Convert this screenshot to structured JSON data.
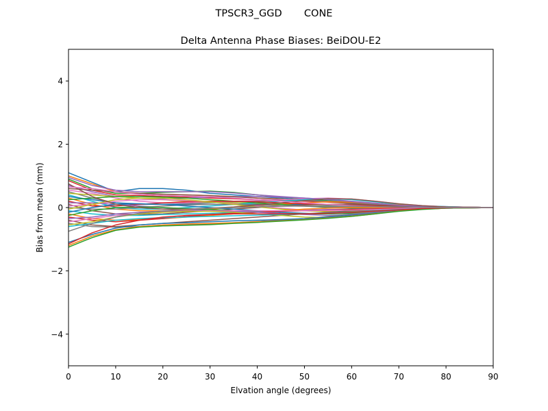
{
  "chart_data": {
    "type": "line",
    "suptitle": "TPSCR3_GGD       CONE",
    "title": "Delta Antenna Phase Biases: BeiDOU-E2",
    "xlabel": "Elvation angle (degrees)",
    "ylabel": "Bias from mean (mm)",
    "xlim": [
      0,
      90
    ],
    "ylim": [
      -5,
      5
    ],
    "xticks": [
      0,
      10,
      20,
      30,
      40,
      50,
      60,
      70,
      80,
      90
    ],
    "yticks": [
      -4,
      -2,
      0,
      2,
      4
    ],
    "grid": false,
    "legend": "none",
    "x": [
      0,
      5,
      10,
      15,
      20,
      25,
      30,
      35,
      40,
      45,
      50,
      55,
      60,
      65,
      70,
      75,
      80,
      85,
      90
    ],
    "series": [
      {
        "values": [
          1.1,
          0.8,
          0.5,
          0.6,
          0.6,
          0.55,
          0.45,
          0.4,
          0.35,
          0.3,
          0.25,
          0.2,
          0.15,
          0.1,
          0.05,
          0.03,
          0.02,
          0.01,
          0.0
        ]
      },
      {
        "values": [
          1.0,
          0.75,
          0.5,
          0.45,
          0.42,
          0.4,
          0.38,
          0.35,
          0.3,
          0.27,
          0.22,
          0.18,
          0.14,
          0.1,
          0.06,
          0.03,
          0.02,
          0.01,
          0.0
        ]
      },
      {
        "values": [
          0.9,
          0.6,
          0.45,
          0.45,
          0.48,
          0.5,
          0.52,
          0.48,
          0.4,
          0.33,
          0.28,
          0.22,
          0.17,
          0.12,
          0.07,
          0.04,
          0.02,
          0.01,
          0.0
        ]
      },
      {
        "values": [
          0.85,
          0.55,
          0.4,
          0.38,
          0.35,
          0.33,
          0.3,
          0.28,
          0.25,
          0.22,
          0.2,
          0.17,
          0.13,
          0.09,
          0.05,
          0.03,
          0.02,
          0.01,
          0.0
        ]
      },
      {
        "values": [
          0.7,
          0.5,
          0.35,
          0.3,
          0.28,
          0.3,
          0.33,
          0.35,
          0.35,
          0.33,
          0.3,
          0.26,
          0.2,
          0.14,
          0.08,
          0.05,
          0.03,
          0.01,
          0.0
        ]
      },
      {
        "values": [
          0.6,
          0.55,
          0.5,
          0.45,
          0.42,
          0.4,
          0.38,
          0.34,
          0.3,
          0.26,
          0.22,
          0.18,
          0.13,
          0.09,
          0.05,
          0.03,
          0.02,
          0.01,
          0.0
        ]
      },
      {
        "values": [
          0.55,
          0.45,
          0.3,
          0.2,
          0.15,
          0.15,
          0.18,
          0.2,
          0.22,
          0.25,
          0.28,
          0.3,
          0.27,
          0.2,
          0.12,
          0.06,
          0.03,
          0.01,
          0.0
        ]
      },
      {
        "values": [
          0.5,
          0.3,
          0.15,
          0.1,
          0.1,
          0.12,
          0.15,
          0.18,
          0.2,
          0.22,
          0.22,
          0.2,
          0.16,
          0.11,
          0.06,
          0.03,
          0.02,
          0.01,
          0.0
        ]
      },
      {
        "values": [
          0.45,
          0.4,
          0.35,
          0.3,
          0.25,
          0.2,
          0.17,
          0.15,
          0.13,
          0.12,
          0.1,
          0.08,
          0.07,
          0.05,
          0.03,
          0.02,
          0.01,
          0.0,
          0.0
        ]
      },
      {
        "values": [
          0.4,
          0.2,
          0.0,
          -0.05,
          -0.05,
          0.0,
          0.05,
          0.1,
          0.15,
          0.2,
          0.25,
          0.28,
          0.25,
          0.18,
          0.1,
          0.05,
          0.03,
          0.01,
          0.0
        ]
      },
      {
        "values": [
          0.35,
          0.25,
          0.15,
          0.12,
          0.1,
          0.1,
          0.1,
          0.1,
          0.1,
          0.1,
          0.1,
          0.09,
          0.08,
          0.06,
          0.04,
          0.02,
          0.01,
          0.0,
          0.0
        ]
      },
      {
        "values": [
          0.3,
          0.1,
          -0.05,
          -0.1,
          -0.1,
          -0.08,
          -0.05,
          0.0,
          0.05,
          0.1,
          0.15,
          0.18,
          0.17,
          0.13,
          0.08,
          0.04,
          0.02,
          0.01,
          0.0
        ]
      },
      {
        "values": [
          0.25,
          0.3,
          0.35,
          0.35,
          0.33,
          0.3,
          0.25,
          0.2,
          0.15,
          0.1,
          0.05,
          0.0,
          -0.02,
          -0.02,
          -0.01,
          0.0,
          0.0,
          0.0,
          0.0
        ]
      },
      {
        "values": [
          0.2,
          0.05,
          0.05,
          0.1,
          0.15,
          0.18,
          0.2,
          0.2,
          0.18,
          0.15,
          0.12,
          0.1,
          0.08,
          0.05,
          0.03,
          0.02,
          0.01,
          0.0,
          0.0
        ]
      },
      {
        "values": [
          0.15,
          0.15,
          0.1,
          0.05,
          0.0,
          -0.05,
          -0.1,
          -0.12,
          -0.12,
          -0.1,
          -0.08,
          -0.06,
          -0.05,
          -0.03,
          -0.02,
          -0.01,
          0.0,
          0.0,
          0.0
        ]
      },
      {
        "values": [
          0.1,
          -0.1,
          -0.2,
          -0.22,
          -0.2,
          -0.15,
          -0.1,
          -0.05,
          0.0,
          0.05,
          0.08,
          0.1,
          0.1,
          0.08,
          0.05,
          0.03,
          0.01,
          0.0,
          0.0
        ]
      },
      {
        "values": [
          0.05,
          0.1,
          0.2,
          0.25,
          0.25,
          0.22,
          0.18,
          0.12,
          0.05,
          -0.02,
          -0.08,
          -0.12,
          -0.12,
          -0.1,
          -0.06,
          -0.03,
          -0.01,
          0.0,
          0.0
        ]
      },
      {
        "values": [
          0.0,
          -0.05,
          -0.05,
          0.0,
          0.05,
          0.08,
          0.1,
          0.1,
          0.08,
          0.06,
          0.04,
          0.02,
          0.01,
          0.0,
          0.0,
          0.0,
          0.0,
          0.0,
          0.0
        ]
      },
      {
        "values": [
          -0.05,
          0.1,
          0.25,
          0.3,
          0.3,
          0.25,
          0.18,
          0.1,
          0.02,
          -0.05,
          -0.1,
          -0.13,
          -0.12,
          -0.1,
          -0.06,
          -0.03,
          -0.01,
          0.0,
          0.0
        ]
      },
      {
        "values": [
          -0.1,
          -0.2,
          -0.25,
          -0.25,
          -0.22,
          -0.2,
          -0.18,
          -0.16,
          -0.14,
          -0.12,
          -0.1,
          -0.08,
          -0.06,
          -0.04,
          -0.02,
          -0.01,
          0.0,
          0.0,
          0.0
        ]
      },
      {
        "values": [
          -0.15,
          0.0,
          0.1,
          0.12,
          0.1,
          0.05,
          0.0,
          -0.05,
          -0.1,
          -0.15,
          -0.18,
          -0.2,
          -0.18,
          -0.13,
          -0.08,
          -0.04,
          -0.02,
          -0.01,
          0.0
        ]
      },
      {
        "values": [
          -0.2,
          -0.35,
          -0.4,
          -0.38,
          -0.35,
          -0.3,
          -0.25,
          -0.2,
          -0.15,
          -0.1,
          -0.05,
          -0.02,
          0.0,
          0.0,
          0.0,
          0.0,
          0.0,
          0.0,
          0.0
        ]
      },
      {
        "values": [
          -0.25,
          -0.1,
          0.0,
          0.02,
          0.0,
          -0.03,
          -0.06,
          -0.1,
          -0.14,
          -0.18,
          -0.2,
          -0.2,
          -0.17,
          -0.12,
          -0.07,
          -0.03,
          -0.01,
          0.0,
          0.0
        ]
      },
      {
        "values": [
          -0.3,
          -0.4,
          -0.45,
          -0.4,
          -0.35,
          -0.28,
          -0.22,
          -0.18,
          -0.15,
          -0.12,
          -0.1,
          -0.08,
          -0.06,
          -0.04,
          -0.02,
          -0.01,
          0.0,
          0.0,
          0.0
        ]
      },
      {
        "values": [
          -0.35,
          -0.3,
          -0.2,
          -0.15,
          -0.12,
          -0.1,
          -0.1,
          -0.12,
          -0.15,
          -0.18,
          -0.22,
          -0.25,
          -0.22,
          -0.15,
          -0.08,
          -0.04,
          -0.02,
          -0.01,
          0.0
        ]
      },
      {
        "values": [
          -0.4,
          -0.55,
          -0.6,
          -0.55,
          -0.5,
          -0.45,
          -0.4,
          -0.35,
          -0.3,
          -0.25,
          -0.2,
          -0.15,
          -0.1,
          -0.07,
          -0.04,
          -0.02,
          -0.01,
          0.0,
          0.0
        ]
      },
      {
        "values": [
          -0.45,
          -0.35,
          -0.25,
          -0.2,
          -0.15,
          -0.12,
          -0.1,
          -0.1,
          -0.1,
          -0.1,
          -0.1,
          -0.09,
          -0.08,
          -0.06,
          -0.04,
          -0.02,
          -0.01,
          0.0,
          0.0
        ]
      },
      {
        "values": [
          -0.5,
          -0.6,
          -0.62,
          -0.6,
          -0.58,
          -0.55,
          -0.52,
          -0.48,
          -0.44,
          -0.4,
          -0.35,
          -0.28,
          -0.2,
          -0.13,
          -0.07,
          -0.03,
          -0.01,
          0.0,
          0.0
        ]
      },
      {
        "values": [
          -0.55,
          -0.45,
          -0.3,
          -0.2,
          -0.15,
          -0.12,
          -0.12,
          -0.15,
          -0.2,
          -0.25,
          -0.3,
          -0.32,
          -0.28,
          -0.2,
          -0.1,
          -0.05,
          -0.02,
          -0.01,
          0.0
        ]
      },
      {
        "values": [
          -0.6,
          -0.5,
          -0.4,
          -0.35,
          -0.32,
          -0.3,
          -0.28,
          -0.26,
          -0.24,
          -0.22,
          -0.2,
          -0.17,
          -0.14,
          -0.1,
          -0.06,
          -0.03,
          -0.01,
          0.0,
          0.0
        ]
      },
      {
        "values": [
          -1.1,
          -0.85,
          -0.65,
          -0.55,
          -0.5,
          -0.48,
          -0.45,
          -0.42,
          -0.4,
          -0.38,
          -0.35,
          -0.3,
          -0.24,
          -0.17,
          -0.1,
          -0.05,
          -0.02,
          -0.01,
          0.0
        ]
      },
      {
        "values": [
          -1.2,
          -0.9,
          -0.7,
          -0.6,
          -0.55,
          -0.52,
          -0.5,
          -0.48,
          -0.45,
          -0.42,
          -0.38,
          -0.33,
          -0.27,
          -0.19,
          -0.11,
          -0.05,
          -0.02,
          -0.01,
          0.0
        ]
      },
      {
        "values": [
          -1.25,
          -0.95,
          -0.72,
          -0.62,
          -0.58,
          -0.56,
          -0.54,
          -0.5,
          -0.47,
          -0.43,
          -0.39,
          -0.34,
          -0.28,
          -0.2,
          -0.12,
          -0.06,
          -0.02,
          -0.01,
          0.0
        ]
      },
      {
        "values": [
          -1.15,
          -0.8,
          -0.55,
          -0.4,
          -0.3,
          -0.25,
          -0.22,
          -0.2,
          -0.2,
          -0.2,
          -0.2,
          -0.18,
          -0.15,
          -0.11,
          -0.07,
          -0.03,
          -0.01,
          0.0,
          0.0
        ]
      },
      {
        "values": [
          0.95,
          0.7,
          0.55,
          0.5,
          0.5,
          0.5,
          0.5,
          0.46,
          0.4,
          0.35,
          0.3,
          0.25,
          0.19,
          0.13,
          0.07,
          0.04,
          0.02,
          0.01,
          0.0
        ]
      },
      {
        "values": [
          0.75,
          0.35,
          0.1,
          0.0,
          -0.05,
          -0.05,
          -0.02,
          0.02,
          0.08,
          0.15,
          0.22,
          0.28,
          0.27,
          0.2,
          0.12,
          0.06,
          0.02,
          0.01,
          0.0
        ]
      },
      {
        "values": [
          0.65,
          0.6,
          0.5,
          0.42,
          0.38,
          0.36,
          0.34,
          0.3,
          0.25,
          0.2,
          0.15,
          0.1,
          0.06,
          0.03,
          0.01,
          0.0,
          0.0,
          0.0,
          0.0
        ]
      },
      {
        "values": [
          -0.75,
          -0.5,
          -0.3,
          -0.18,
          -0.1,
          -0.05,
          -0.02,
          0.0,
          0.02,
          0.04,
          0.05,
          0.05,
          0.04,
          0.03,
          0.02,
          0.01,
          0.0,
          0.0,
          0.0
        ]
      }
    ]
  }
}
